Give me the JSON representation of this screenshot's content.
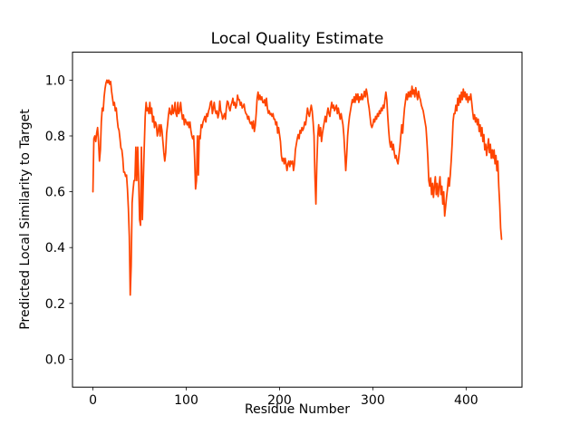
{
  "figure": {
    "background": "#ffffff",
    "frame_color": "#000000"
  },
  "chart_data": {
    "type": "line",
    "title": "Local Quality Estimate",
    "xlabel": "Residue Number",
    "ylabel": "Predicted Local Similarity to Target",
    "xlim": [
      -21.9,
      459.9
    ],
    "ylim": [
      -0.1,
      1.1
    ],
    "xticks": [
      0,
      100,
      200,
      300,
      400
    ],
    "yticks": [
      0.0,
      0.2,
      0.4,
      0.6,
      0.8,
      1.0
    ],
    "grid": false,
    "legend": null,
    "series": [
      {
        "name": "predicted-local-similarity",
        "color": "#FF4500",
        "line_width": 1.75,
        "x_start": 0,
        "x_step": 1,
        "y": [
          0.6,
          0.79,
          0.8,
          0.78,
          0.81,
          0.83,
          0.78,
          0.71,
          0.75,
          0.85,
          0.9,
          0.89,
          0.94,
          0.97,
          0.99,
          1.0,
          0.99,
          1.0,
          0.985,
          0.995,
          0.96,
          0.935,
          0.91,
          0.92,
          0.89,
          0.9,
          0.86,
          0.83,
          0.82,
          0.79,
          0.757,
          0.75,
          0.72,
          0.67,
          0.67,
          0.655,
          0.66,
          0.61,
          0.54,
          0.44,
          0.23,
          0.335,
          0.56,
          0.605,
          0.64,
          0.64,
          0.76,
          0.64,
          0.76,
          0.65,
          0.5,
          0.48,
          0.76,
          0.5,
          0.64,
          0.76,
          0.87,
          0.92,
          0.89,
          0.9,
          0.88,
          0.92,
          0.88,
          0.9,
          0.85,
          0.87,
          0.83,
          0.85,
          0.84,
          0.8,
          0.82,
          0.84,
          0.8,
          0.84,
          0.82,
          0.78,
          0.74,
          0.71,
          0.74,
          0.81,
          0.84,
          0.876,
          0.9,
          0.88,
          0.876,
          0.91,
          0.88,
          0.89,
          0.92,
          0.88,
          0.87,
          0.92,
          0.88,
          0.89,
          0.92,
          0.885,
          0.86,
          0.875,
          0.84,
          0.86,
          0.85,
          0.84,
          0.85,
          0.83,
          0.85,
          0.82,
          0.8,
          0.79,
          0.8,
          0.72,
          0.61,
          0.64,
          0.8,
          0.66,
          0.8,
          0.79,
          0.84,
          0.83,
          0.85,
          0.86,
          0.87,
          0.85,
          0.88,
          0.87,
          0.89,
          0.9,
          0.92,
          0.925,
          0.88,
          0.9,
          0.92,
          0.89,
          0.88,
          0.89,
          0.865,
          0.88,
          0.925,
          0.89,
          0.88,
          0.86,
          0.87,
          0.88,
          0.86,
          0.9,
          0.925,
          0.92,
          0.9,
          0.89,
          0.91,
          0.92,
          0.935,
          0.91,
          0.92,
          0.9,
          0.91,
          0.946,
          0.93,
          0.93,
          0.91,
          0.92,
          0.9,
          0.905,
          0.914,
          0.89,
          0.88,
          0.876,
          0.86,
          0.87,
          0.85,
          0.843,
          0.85,
          0.827,
          0.854,
          0.816,
          0.838,
          0.88,
          0.935,
          0.957,
          0.93,
          0.946,
          0.93,
          0.94,
          0.92,
          0.919,
          0.93,
          0.908,
          0.935,
          0.9,
          0.881,
          0.89,
          0.876,
          0.88,
          0.87,
          0.88,
          0.86,
          0.86,
          0.84,
          0.85,
          0.81,
          0.83,
          0.805,
          0.78,
          0.73,
          0.71,
          0.72,
          0.7,
          0.72,
          0.7,
          0.676,
          0.7,
          0.71,
          0.69,
          0.71,
          0.7,
          0.71,
          0.676,
          0.7,
          0.75,
          0.77,
          0.79,
          0.805,
          0.79,
          0.82,
          0.81,
          0.83,
          0.82,
          0.83,
          0.85,
          0.84,
          0.87,
          0.9,
          0.88,
          0.87,
          0.89,
          0.91,
          0.89,
          0.85,
          0.8,
          0.65,
          0.556,
          0.7,
          0.8,
          0.84,
          0.8,
          0.83,
          0.78,
          0.81,
          0.83,
          0.85,
          0.87,
          0.85,
          0.88,
          0.9,
          0.88,
          0.87,
          0.9,
          0.92,
          0.9,
          0.91,
          0.89,
          0.9,
          0.91,
          0.88,
          0.9,
          0.88,
          0.86,
          0.88,
          0.86,
          0.84,
          0.8,
          0.74,
          0.676,
          0.73,
          0.8,
          0.84,
          0.87,
          0.89,
          0.91,
          0.93,
          0.92,
          0.94,
          0.92,
          0.95,
          0.93,
          0.95,
          0.92,
          0.94,
          0.93,
          0.95,
          0.93,
          0.94,
          0.96,
          0.94,
          0.968,
          0.95,
          0.92,
          0.9,
          0.87,
          0.84,
          0.83,
          0.84,
          0.86,
          0.85,
          0.87,
          0.86,
          0.88,
          0.87,
          0.89,
          0.88,
          0.9,
          0.89,
          0.91,
          0.9,
          0.93,
          0.957,
          0.93,
          0.87,
          0.82,
          0.78,
          0.76,
          0.78,
          0.75,
          0.77,
          0.74,
          0.72,
          0.73,
          0.71,
          0.7,
          0.73,
          0.76,
          0.8,
          0.84,
          0.81,
          0.86,
          0.9,
          0.925,
          0.95,
          0.93,
          0.957,
          0.94,
          0.96,
          0.94,
          0.978,
          0.95,
          0.965,
          0.94,
          0.973,
          0.95,
          0.93,
          0.96,
          0.94,
          0.93,
          0.91,
          0.9,
          0.89,
          0.87,
          0.85,
          0.83,
          0.78,
          0.72,
          0.64,
          0.62,
          0.65,
          0.59,
          0.63,
          0.58,
          0.62,
          0.654,
          0.59,
          0.63,
          0.583,
          0.62,
          0.654,
          0.59,
          0.62,
          0.556,
          0.6,
          0.513,
          0.546,
          0.58,
          0.61,
          0.65,
          0.62,
          0.66,
          0.71,
          0.77,
          0.85,
          0.88,
          0.88,
          0.91,
          0.89,
          0.935,
          0.91,
          0.946,
          0.92,
          0.957,
          0.93,
          0.968,
          0.94,
          0.957,
          0.93,
          0.95,
          0.92,
          0.94,
          0.93,
          0.95,
          0.92,
          0.887,
          0.86,
          0.876,
          0.85,
          0.865,
          0.84,
          0.86,
          0.816,
          0.84,
          0.8,
          0.83,
          0.78,
          0.805,
          0.75,
          0.77,
          0.73,
          0.76,
          0.79,
          0.74,
          0.77,
          0.72,
          0.75,
          0.72,
          0.75,
          0.7,
          0.73,
          0.675,
          0.71,
          0.62,
          0.556,
          0.47,
          0.43
        ]
      }
    ]
  }
}
